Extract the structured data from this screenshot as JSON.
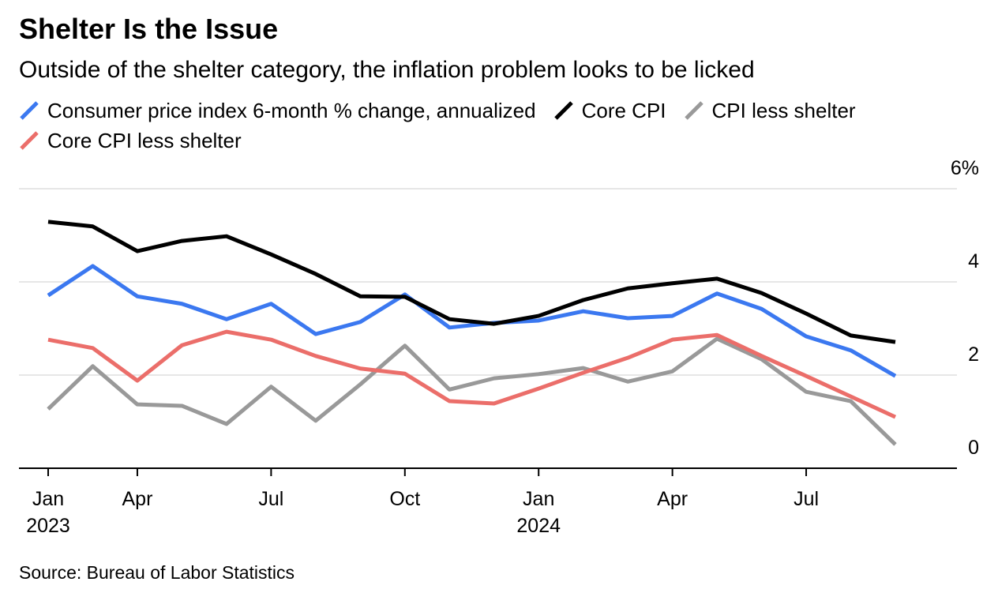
{
  "chart_data": {
    "type": "line",
    "title": "Shelter Is the Issue",
    "subtitle": "Outside of the shelter category, the inflation problem looks to be licked",
    "source": "Source: Bureau of Labor Statistics",
    "categories": [
      "Jan 2023",
      null,
      "Apr",
      null,
      null,
      "Jul",
      null,
      null,
      "Oct",
      null,
      null,
      "Jan 2024",
      null,
      null,
      "Apr",
      null,
      null,
      "Jul",
      null,
      null
    ],
    "series": [
      {
        "name": "Consumer price index 6-month % change, annualized",
        "color": "#3b78f0",
        "values": [
          3.71,
          4.34,
          3.69,
          3.53,
          3.2,
          3.53,
          2.88,
          3.14,
          3.73,
          3.02,
          3.12,
          3.17,
          3.37,
          3.22,
          3.27,
          3.75,
          3.42,
          2.83,
          2.53,
          1.98
        ]
      },
      {
        "name": "Core CPI",
        "color": "#000000",
        "values": [
          5.29,
          5.19,
          4.66,
          4.88,
          4.98,
          4.59,
          4.17,
          3.69,
          3.68,
          3.2,
          3.1,
          3.27,
          3.61,
          3.86,
          3.97,
          4.07,
          3.76,
          3.32,
          2.85,
          2.71
        ]
      },
      {
        "name": "CPI less shelter",
        "color": "#999999",
        "values": [
          1.27,
          2.19,
          1.37,
          1.34,
          0.95,
          1.75,
          1.02,
          1.8,
          2.63,
          1.69,
          1.93,
          2.02,
          2.15,
          1.86,
          2.08,
          2.78,
          2.34,
          1.64,
          1.44,
          0.51
        ]
      },
      {
        "name": "Core CPI less shelter",
        "color": "#eb6e6a",
        "values": [
          2.76,
          2.58,
          1.88,
          2.64,
          2.93,
          2.76,
          2.41,
          2.14,
          2.03,
          1.44,
          1.39,
          1.71,
          2.05,
          2.37,
          2.76,
          2.86,
          2.41,
          1.98,
          1.54,
          1.1
        ]
      }
    ],
    "ylim": [
      0,
      6
    ],
    "yticks": [
      0,
      2,
      4,
      {
        "value": 6,
        "label": "6%"
      }
    ],
    "grid": true
  }
}
